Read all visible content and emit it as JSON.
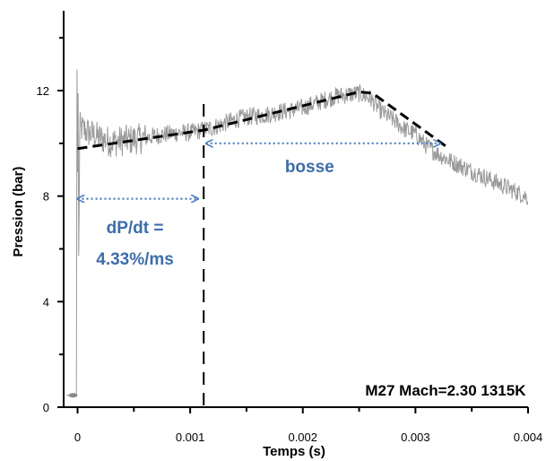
{
  "chart_data": {
    "type": "line",
    "xlabel": "Temps (s)",
    "ylabel": "Pression (bar)",
    "xlim": [
      -5e-05,
      0.004
    ],
    "ylim": [
      0,
      14.6
    ],
    "x_ticks": [
      0,
      0.001,
      0.002,
      0.003,
      0.004
    ],
    "x_tick_labels": [
      "0",
      "0.001",
      "0.002",
      "0.003",
      "0.004"
    ],
    "y_ticks": [
      0,
      4,
      8,
      12
    ],
    "y_tick_labels": [
      "0",
      "4",
      "8",
      "12"
    ],
    "grid": false,
    "series": [
      {
        "style": "noisy-grey",
        "color": "#9a9a9a",
        "x": [
          -0.0001,
          -3e-05,
          0,
          2e-05,
          0.0001,
          0.0002,
          0.0003,
          0.0004,
          0.0005,
          0.0006,
          0.0007,
          0.0008,
          0.0009,
          0.001,
          0.0011,
          0.0012,
          0.0013,
          0.0014,
          0.0015,
          0.0016,
          0.0017,
          0.0018,
          0.0019,
          0.002,
          0.0021,
          0.0022,
          0.0023,
          0.0024,
          0.0025,
          0.0026,
          0.0027,
          0.0028,
          0.0029,
          0.003,
          0.0031,
          0.0032,
          0.0033,
          0.0034,
          0.0035,
          0.0036,
          0.0037,
          0.0038,
          0.0039,
          0.004
        ],
        "y": [
          0.45,
          0.45,
          0.5,
          10.6,
          10.4,
          10.2,
          10.05,
          10.1,
          10.15,
          10.2,
          10.3,
          10.35,
          10.4,
          10.4,
          10.5,
          10.6,
          10.75,
          10.9,
          11.0,
          11.05,
          11.1,
          11.2,
          11.25,
          11.35,
          11.5,
          11.65,
          11.8,
          11.85,
          11.9,
          11.7,
          11.2,
          10.9,
          10.55,
          10.35,
          9.9,
          9.6,
          9.35,
          9.15,
          8.95,
          8.75,
          8.55,
          8.35,
          8.15,
          7.95
        ],
        "noise_amplitude": 0.35
      },
      {
        "style": "black-dashed-fit",
        "color": "#000000",
        "x": [
          0,
          0.00112,
          0.0025,
          0.00262,
          0.0033
        ],
        "y": [
          9.8,
          10.5,
          11.95,
          11.9,
          9.8
        ]
      }
    ],
    "annotations": [
      {
        "kind": "vertical-dashed-line",
        "x": 0.00112,
        "color": "#000000"
      },
      {
        "kind": "double-arrow",
        "x1": 0,
        "x2": 0.00107,
        "y": 7.9,
        "color": "#4a7fbf"
      },
      {
        "kind": "double-arrow",
        "x1": 0.00114,
        "x2": 0.00322,
        "y": 10.0,
        "color": "#4a7fbf"
      },
      {
        "kind": "text",
        "id": "bosse",
        "text": "bosse",
        "x": 0.00206,
        "y": 8.9
      },
      {
        "kind": "text",
        "id": "dpdt1",
        "text": "dP/dt =",
        "x": 0.00051,
        "y": 6.6
      },
      {
        "kind": "text",
        "id": "dpdt2",
        "text": "4.33%/ms",
        "x": 0.00051,
        "y": 5.4
      },
      {
        "kind": "text",
        "id": "info",
        "text": "M27 Mach=2.30 1315K",
        "x": 0.00398,
        "y": 0.45
      }
    ]
  }
}
